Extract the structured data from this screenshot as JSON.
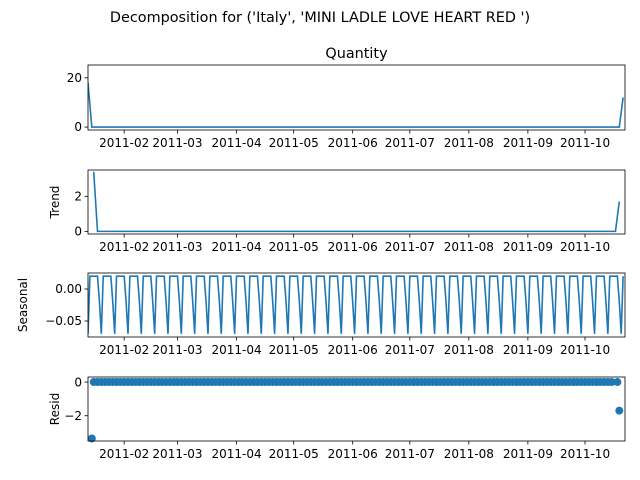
{
  "chart_data": {
    "suptitle": "Decomposition for ('Italy', 'MINI LADLE LOVE HEART RED ')",
    "x_tick_labels": [
      "2011-02",
      "2011-03",
      "2011-04",
      "2011-05",
      "2011-06",
      "2011-07",
      "2011-08",
      "2011-09",
      "2011-10"
    ],
    "x_range": [
      "2011-01-13",
      "2011-10-22"
    ],
    "line_color": "#1f77b4",
    "panels": [
      {
        "type": "line",
        "title": "Quantity",
        "ylabel": "",
        "ylim": [
          -1.2,
          25.2
        ],
        "yticks": [
          0,
          20
        ],
        "ytick_labels": [
          "0",
          "20"
        ],
        "points": [
          [
            "2011-01-13",
            18
          ],
          [
            "2011-01-15",
            0
          ],
          [
            "2011-10-17",
            0
          ],
          [
            "2011-10-19",
            0
          ],
          [
            "2011-10-21",
            12
          ]
        ]
      },
      {
        "type": "line",
        "title": "",
        "ylabel": "Trend",
        "ylim": [
          -0.15,
          3.5
        ],
        "yticks": [
          0,
          2
        ],
        "ytick_labels": [
          "0",
          "2"
        ],
        "points": [
          [
            "2011-01-16",
            3.4
          ],
          [
            "2011-01-18",
            0
          ],
          [
            "2011-10-17",
            0
          ],
          [
            "2011-10-19",
            1.7
          ]
        ]
      },
      {
        "type": "seasonal",
        "title": "",
        "ylabel": "Seasonal",
        "ylim": [
          -0.075,
          0.025
        ],
        "yticks": [
          0.0,
          -0.05
        ],
        "ytick_labels": [
          "0.00",
          "−0.05"
        ],
        "start": "2011-01-13",
        "end": "2011-10-21",
        "period_days": 7,
        "pattern": [
          -0.07,
          0.02,
          0.02,
          0.02,
          0.02,
          0.02,
          -0.02
        ]
      },
      {
        "type": "scatter",
        "title": "",
        "ylabel": "Resid",
        "ylim": [
          -3.5,
          0.3
        ],
        "yticks": [
          0,
          -2
        ],
        "ytick_labels": [
          "0",
          "−2"
        ],
        "baseline_start": "2011-01-16",
        "baseline_end": "2011-10-16",
        "baseline_value": 0,
        "baseline_step_days": 2,
        "extra_points": [
          [
            "2011-01-15",
            -3.35
          ],
          [
            "2011-10-18",
            0
          ],
          [
            "2011-10-19",
            -1.7
          ]
        ]
      }
    ]
  }
}
